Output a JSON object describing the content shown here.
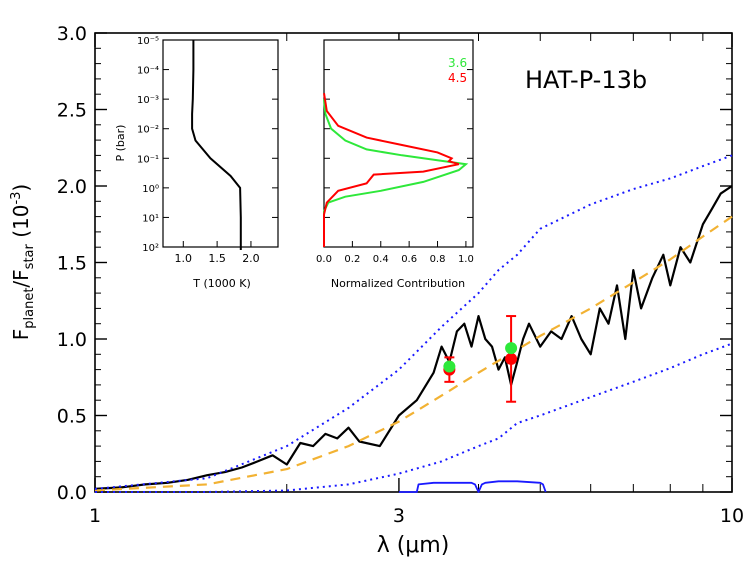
{
  "chart_data": [
    {
      "type": "line",
      "panel": "main",
      "title": "HAT-P-13b",
      "xlabel": "λ (μm)",
      "ylabel": "F_planet/F_star (10^-3)",
      "xscale": "log",
      "xlim": [
        1,
        10
      ],
      "ylim": [
        0,
        3
      ],
      "xticks": [
        1,
        3,
        10
      ],
      "yticks": [
        0.0,
        0.5,
        1.0,
        1.5,
        2.0,
        2.5,
        3.0
      ],
      "ytick_labels": [
        "0.0",
        "0.5",
        "1.0",
        "1.5",
        "2.0",
        "2.5",
        "3.0"
      ],
      "series": [
        {
          "style": "solid",
          "color": "#000000",
          "x": [
            1.0,
            1.1,
            1.2,
            1.3,
            1.4,
            1.5,
            1.6,
            1.7,
            1.8,
            1.9,
            2.0,
            2.1,
            2.2,
            2.3,
            2.4,
            2.5,
            2.6,
            2.8,
            3.0,
            3.2,
            3.4,
            3.5,
            3.6,
            3.7,
            3.8,
            3.9,
            4.0,
            4.1,
            4.2,
            4.3,
            4.4,
            4.5,
            4.6,
            4.7,
            4.8,
            5.0,
            5.2,
            5.4,
            5.6,
            5.8,
            6.0,
            6.2,
            6.4,
            6.6,
            6.8,
            7.0,
            7.2,
            7.5,
            7.8,
            8.0,
            8.3,
            8.6,
            9.0,
            9.3,
            9.6,
            10.0
          ],
          "y": [
            0.02,
            0.03,
            0.05,
            0.06,
            0.08,
            0.11,
            0.13,
            0.16,
            0.2,
            0.24,
            0.18,
            0.32,
            0.3,
            0.38,
            0.35,
            0.42,
            0.33,
            0.3,
            0.5,
            0.6,
            0.78,
            0.95,
            0.85,
            1.05,
            1.1,
            0.95,
            1.15,
            1.0,
            0.95,
            0.8,
            0.88,
            0.7,
            0.85,
            1.0,
            1.1,
            0.95,
            1.05,
            1.0,
            1.15,
            1.0,
            0.9,
            1.2,
            1.1,
            1.35,
            1.0,
            1.45,
            1.2,
            1.4,
            1.55,
            1.35,
            1.6,
            1.5,
            1.75,
            1.85,
            1.95,
            2.0
          ]
        },
        {
          "style": "dashed",
          "color": "#f2b233",
          "x": [
            1.0,
            1.5,
            2.0,
            2.5,
            3.0,
            3.5,
            4.0,
            5.0,
            6.0,
            7.0,
            8.0,
            9.0,
            10.0
          ],
          "y": [
            0.01,
            0.05,
            0.15,
            0.3,
            0.46,
            0.63,
            0.78,
            1.02,
            1.2,
            1.37,
            1.52,
            1.67,
            1.8
          ]
        },
        {
          "style": "dotted",
          "color": "#1a1aff",
          "x": [
            1.0,
            1.5,
            2.0,
            2.5,
            3.0,
            3.5,
            4.0,
            4.3,
            4.6,
            5.0,
            6.0,
            7.0,
            8.0,
            9.0,
            10.0
          ],
          "y": [
            0.02,
            0.09,
            0.3,
            0.55,
            0.8,
            1.08,
            1.3,
            1.45,
            1.55,
            1.72,
            1.88,
            1.98,
            2.05,
            2.13,
            2.2
          ]
        },
        {
          "style": "dotted",
          "color": "#1a1aff",
          "x": [
            1.0,
            1.5,
            2.0,
            2.5,
            3.0,
            3.5,
            4.0,
            4.3,
            4.6,
            5.0,
            6.0,
            7.0,
            8.0,
            9.0,
            10.0
          ],
          "y": [
            0.0,
            0.0,
            0.01,
            0.05,
            0.12,
            0.2,
            0.3,
            0.35,
            0.45,
            0.5,
            0.62,
            0.72,
            0.81,
            0.9,
            0.97
          ]
        },
        {
          "style": "solid",
          "color": "#1a1aff",
          "x": [
            3.0,
            3.2,
            3.22,
            3.4,
            3.6,
            3.9,
            3.95,
            4.0,
            4.05,
            4.1,
            4.3,
            4.6,
            5.0,
            5.05,
            5.1
          ],
          "y": [
            0.0,
            0.0,
            0.05,
            0.06,
            0.06,
            0.06,
            0.05,
            0.0,
            0.05,
            0.06,
            0.07,
            0.07,
            0.06,
            0.05,
            0.0
          ]
        }
      ],
      "observations": [
        {
          "color": "#ff0000",
          "x": 3.6,
          "y": 0.8,
          "err": 0.08
        },
        {
          "color": "#2ee83a",
          "x": 3.6,
          "y": 0.82,
          "err": 0.0
        },
        {
          "color": "#ff0000",
          "x": 4.5,
          "y": 0.87,
          "err": 0.28
        },
        {
          "color": "#2ee83a",
          "x": 4.5,
          "y": 0.94,
          "err": 0.0
        }
      ]
    },
    {
      "type": "line",
      "panel": "inset-left",
      "xlabel": "T (1000 K)",
      "ylabel": "P (bar)",
      "xlim": [
        0.7,
        2.4
      ],
      "xticks": [
        1.0,
        1.5,
        2.0
      ],
      "xtick_labels": [
        "1.0",
        "1.5",
        "2.0"
      ],
      "yscale": "log",
      "ylim_exp": [
        -5,
        2
      ],
      "ytick_labels": [
        "10⁻⁵",
        "10⁻⁴",
        "10⁻³",
        "10⁻²",
        "10⁻¹",
        "10⁰",
        "10¹",
        "10²"
      ],
      "series": [
        {
          "color": "#000000",
          "x": [
            1.15,
            1.15,
            1.14,
            1.13,
            1.13,
            1.18,
            1.4,
            1.7,
            1.84,
            1.85,
            1.85
          ],
          "logP": [
            -5,
            -4,
            -3,
            -2.5,
            -2,
            -1.6,
            -1.0,
            -0.4,
            0,
            1,
            2.1
          ]
        }
      ]
    },
    {
      "type": "line",
      "panel": "inset-right",
      "xlabel": "Normalized Contribution",
      "xlim": [
        0,
        1.05
      ],
      "xticks": [
        0.0,
        0.2,
        0.4,
        0.6,
        0.8,
        1.0
      ],
      "xtick_labels": [
        "0.0",
        "0.2",
        "0.4",
        "0.6",
        "0.8",
        "1.0"
      ],
      "ylim_exp": [
        -5,
        2
      ],
      "series": [
        {
          "name": "3.6",
          "color": "#2ee83a",
          "x": [
            0.0,
            0.01,
            0.05,
            0.15,
            0.3,
            0.55,
            0.85,
            1.0,
            0.95,
            0.7,
            0.4,
            0.15,
            0.03,
            0.0,
            0.0
          ],
          "logP": [
            -3,
            -2.5,
            -2,
            -1.6,
            -1.3,
            -1.1,
            -0.9,
            -0.8,
            -0.6,
            -0.2,
            0.1,
            0.3,
            0.5,
            0.8,
            2.0
          ]
        },
        {
          "name": "4.5",
          "color": "#ff0000",
          "x": [
            0.0,
            0.02,
            0.1,
            0.3,
            0.55,
            0.8,
            0.9,
            0.88,
            0.95,
            0.7,
            0.35,
            0.3,
            0.1,
            0.02,
            0.0,
            0.0
          ],
          "logP": [
            -3.2,
            -2.6,
            -2.1,
            -1.7,
            -1.45,
            -1.2,
            -1.0,
            -0.9,
            -0.8,
            -0.55,
            -0.45,
            -0.15,
            0.1,
            0.5,
            0.9,
            2.0
          ]
        }
      ],
      "legend": [
        "3.6",
        "4.5"
      ]
    }
  ],
  "colors": {
    "green": "#2ee83a",
    "red": "#ff0000",
    "blue": "#1a1aff",
    "orange": "#f2b233"
  }
}
